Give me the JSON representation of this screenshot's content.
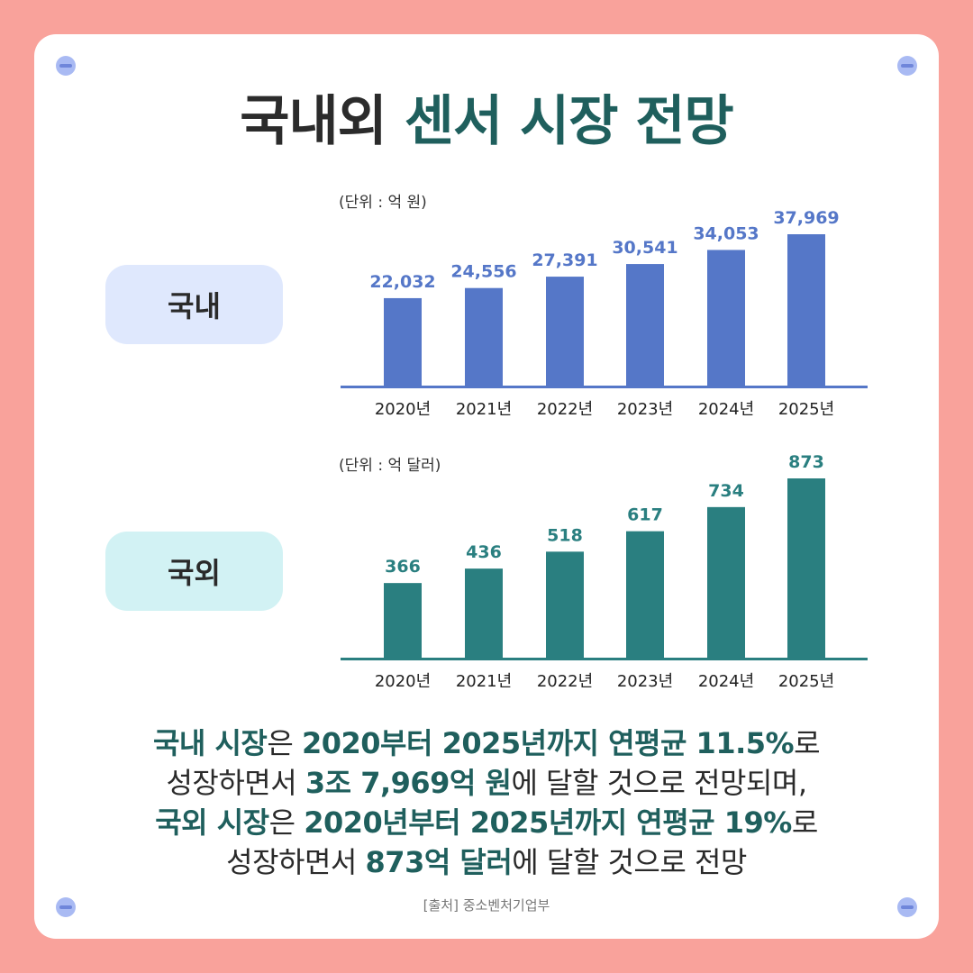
{
  "title": {
    "part1": "국내외",
    "part2": "센서 시장 전망"
  },
  "labels": {
    "domestic": "국내",
    "overseas": "국외"
  },
  "colors": {
    "background": "#f9a29b",
    "domestic_bar": "#5577c8",
    "overseas_bar": "#2a7f80",
    "accent_text": "#1f5f5d"
  },
  "chart_data": [
    {
      "type": "bar",
      "unit_note": "(단위 : 억 원)",
      "categories": [
        "2020년",
        "2021년",
        "2022년",
        "2023년",
        "2024년",
        "2025년"
      ],
      "values": [
        22032,
        24556,
        27391,
        30541,
        34053,
        37969
      ],
      "value_labels": [
        "22,032",
        "24,556",
        "27,391",
        "30,541",
        "34,053",
        "37,969"
      ],
      "color": "#5577c8"
    },
    {
      "type": "bar",
      "unit_note": "(단위 : 억 달러)",
      "categories": [
        "2020년",
        "2021년",
        "2022년",
        "2023년",
        "2024년",
        "2025년"
      ],
      "values": [
        366,
        436,
        518,
        617,
        734,
        873
      ],
      "value_labels": [
        "366",
        "436",
        "518",
        "617",
        "734",
        "873"
      ],
      "color": "#2a7f80"
    }
  ],
  "description": {
    "l1a": "국내 시장",
    "l1b": "은 ",
    "l1c": "2020부터 2025년까지 연평균 11.5%",
    "l1d": "로",
    "l2a": "성장하면서 ",
    "l2b": "3조 7,969억 원",
    "l2c": "에 달할 것으로 전망되며,",
    "l3a": "국외 시장",
    "l3b": "은 ",
    "l3c": "2020년부터 2025년까지 연평균 19%",
    "l3d": "로",
    "l4a": "성장하면서 ",
    "l4b": "873억 달러",
    "l4c": "에 달할 것으로 전망"
  },
  "source": "[출처] 중소벤처기업부"
}
